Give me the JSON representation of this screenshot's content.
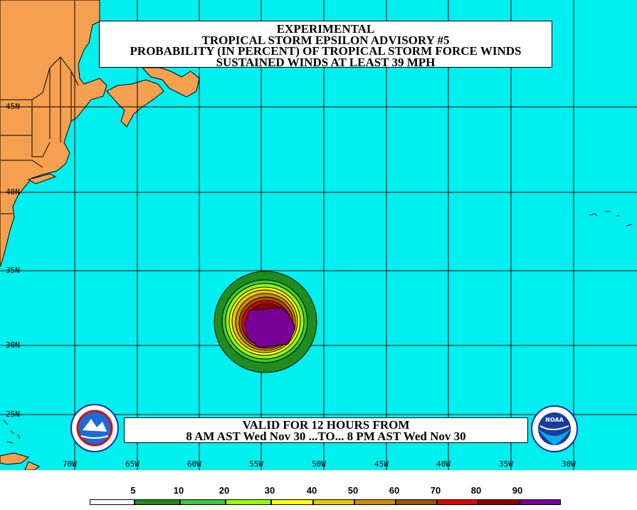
{
  "title": {
    "line1": "EXPERIMENTAL",
    "line2": "TROPICAL STORM EPSILON ADVISORY #5",
    "line3": "PROBABILITY (IN PERCENT) OF TROPICAL STORM FORCE WINDS",
    "line4": "SUSTAINED WINDS AT LEAST 39 MPH"
  },
  "valid": {
    "line1": "VALID FOR 12 HOURS FROM",
    "line2": "8 AM AST Wed Nov 30 ...TO... 8 PM AST Wed Nov 30"
  },
  "latitude_labels": [
    "45N",
    "40N",
    "35N",
    "30N",
    "25N"
  ],
  "longitude_labels": [
    "70W",
    "65W",
    "60W",
    "55W",
    "50W",
    "45W",
    "40W",
    "35W",
    "30W"
  ],
  "legend": {
    "labels": [
      "5",
      "10",
      "20",
      "30",
      "40",
      "50",
      "60",
      "70",
      "80",
      "90"
    ],
    "colors": [
      "#ffffff",
      "#1e8c1e",
      "#3cc83c",
      "#96ff00",
      "#ffff00",
      "#e6c800",
      "#d28c00",
      "#a05000",
      "#e60000",
      "#8c0000",
      "#780096"
    ]
  },
  "colors": {
    "ocean": "#00f0f0",
    "land": "#f5a050",
    "grid": "#000000"
  },
  "logos": {
    "left": "national-weather-service-logo",
    "right": "noaa-logo",
    "left_text": "NATIONAL WEATHER SERVICE",
    "right_text": "NOAA"
  }
}
